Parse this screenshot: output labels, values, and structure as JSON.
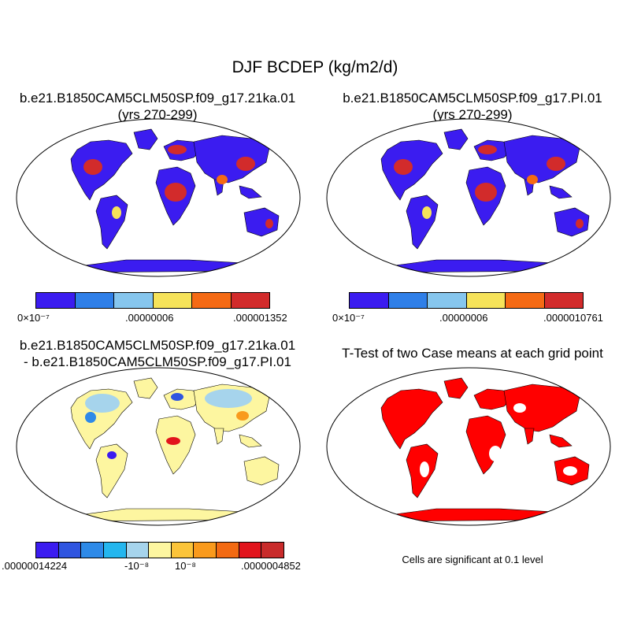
{
  "title": "DJF BCDEP (kg/m2/d)",
  "panels": {
    "p1": {
      "line1": "b.e21.B1850CAM5CLM50SP.f09_g17.21ka.01",
      "line2": "(yrs 270-299)"
    },
    "p2": {
      "line1": "b.e21.B1850CAM5CLM50SP.f09_g17.PI.01",
      "line2": "(yrs 270-299)"
    },
    "p3": {
      "line1": "b.e21.B1850CAM5CLM50SP.f09_g17.21ka.01",
      "line2": "- b.e21.B1850CAM5CLM50SP.f09_g17.PI.01"
    },
    "p4": {
      "line1": "T-Test of two Case means at each grid point"
    }
  },
  "colorbars": {
    "cb1": {
      "colors": [
        "#3b1cf0",
        "#2f7fe8",
        "#86c6ee",
        "#f6e35a",
        "#f56a14",
        "#d22b2b"
      ],
      "labels": [
        "0×10⁻⁷",
        ".00000006",
        ".000001352"
      ]
    },
    "cb2": {
      "colors": [
        "#3b1cf0",
        "#2f7fe8",
        "#86c6ee",
        "#f6e35a",
        "#f56a14",
        "#d22b2b"
      ],
      "labels": [
        "0×10⁻⁷",
        ".00000006",
        ".0000010761"
      ]
    },
    "cb3": {
      "colors": [
        "#3b1cf0",
        "#2f55e0",
        "#2e8ae8",
        "#24b6ee",
        "#a6d4ec",
        "#fdf6a0",
        "#fbc43a",
        "#f99a1c",
        "#f36a12",
        "#e2141c",
        "#c92b2b"
      ],
      "labels": [
        ".00000014224",
        "-10⁻⁸",
        "10⁻⁸",
        ".0000004852"
      ]
    }
  },
  "ttest_note": "Cells are significant at 0.1 level",
  "colors": {
    "ocean": "#ffffff",
    "land_low": "#3b1cf0",
    "land_high": "#d22b2b",
    "diff_neutral": "#fdf6a0",
    "significant": "#ff0000"
  }
}
